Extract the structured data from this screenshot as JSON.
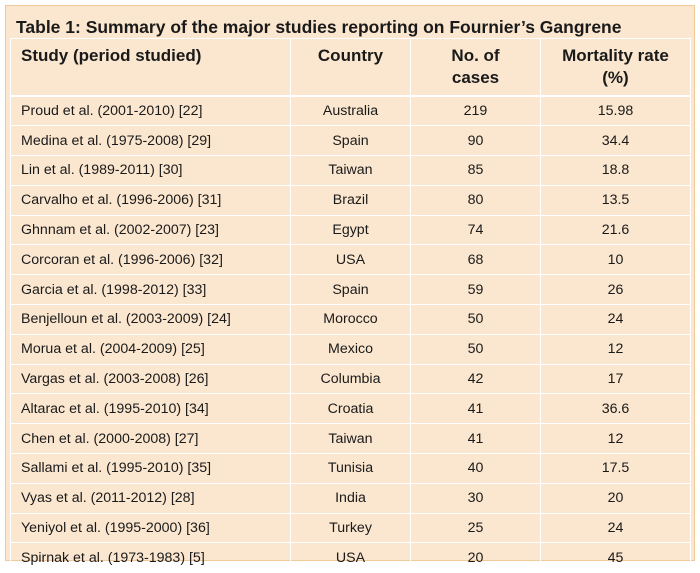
{
  "table": {
    "caption": "Table 1: Summary of the major studies reporting on Fournier’s Gangrene",
    "headers": {
      "study": "Study (period studied)",
      "country": "Country",
      "cases_line1": "No. of",
      "cases_line2": "cases",
      "mortality_line1": "Mortality rate",
      "mortality_line2": "(%)"
    },
    "rows": [
      {
        "study": "Proud et al. (2001-2010) [22]",
        "country": "Australia",
        "cases": "219",
        "mortality": "15.98"
      },
      {
        "study": "Medina et al. (1975-2008) [29]",
        "country": "Spain",
        "cases": "90",
        "mortality": "34.4"
      },
      {
        "study": "Lin et al. (1989-2011) [30]",
        "country": "Taiwan",
        "cases": "85",
        "mortality": "18.8"
      },
      {
        "study": "Carvalho et al. (1996-2006) [31]",
        "country": "Brazil",
        "cases": "80",
        "mortality": "13.5"
      },
      {
        "study": "Ghnnam et al. (2002-2007) [23]",
        "country": "Egypt",
        "cases": "74",
        "mortality": "21.6"
      },
      {
        "study": "Corcoran et al. (1996-2006) [32]",
        "country": "USA",
        "cases": "68",
        "mortality": "10"
      },
      {
        "study": "Garcia et al. (1998-2012) [33]",
        "country": "Spain",
        "cases": "59",
        "mortality": "26"
      },
      {
        "study": "Benjelloun et al. (2003-2009) [24]",
        "country": "Morocco",
        "cases": "50",
        "mortality": "24"
      },
      {
        "study": "Morua et al. (2004-2009) [25]",
        "country": "Mexico",
        "cases": "50",
        "mortality": "12"
      },
      {
        "study": "Vargas et al. (2003-2008) [26]",
        "country": "Columbia",
        "cases": "42",
        "mortality": "17"
      },
      {
        "study": "Altarac et al. (1995-2010) [34]",
        "country": "Croatia",
        "cases": "41",
        "mortality": "36.6"
      },
      {
        "study": "Chen et al. (2000-2008) [27]",
        "country": "Taiwan",
        "cases": "41",
        "mortality": "12"
      },
      {
        "study": "Sallami et al. (1995-2010) [35]",
        "country": "Tunisia",
        "cases": "40",
        "mortality": "17.5"
      },
      {
        "study": "Vyas et al. (2011-2012) [28]",
        "country": "India",
        "cases": "30",
        "mortality": "20"
      },
      {
        "study": "Yeniyol et al. (1995-2000) [36]",
        "country": "Turkey",
        "cases": "25",
        "mortality": "24"
      },
      {
        "study": "Spirnak et al. (1973-1983) [5]",
        "country": "USA",
        "cases": "20",
        "mortality": "45"
      }
    ]
  },
  "colors": {
    "background": "#fbe7cf",
    "border": "#f0c999",
    "grid_lines": "#ffffff",
    "text": "#1a1a1a"
  }
}
